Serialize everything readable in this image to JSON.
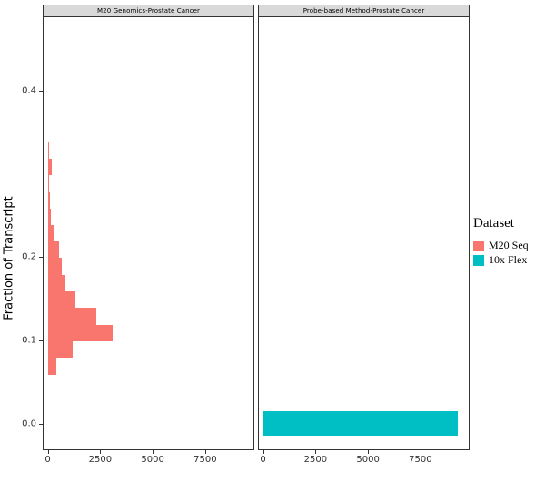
{
  "chart_data": {
    "type": "bar",
    "subtype": "horizontal-histogram-faceted",
    "title": "",
    "xlabel": "",
    "ylabel": "Fraction of Transcript",
    "x_domain": [
      -200,
      9800
    ],
    "y_domain": [
      -0.03,
      0.49
    ],
    "grid": false,
    "x_ticks": [
      {
        "v": 0,
        "label": "0"
      },
      {
        "v": 2500,
        "label": "2500"
      },
      {
        "v": 5000,
        "label": "5000"
      },
      {
        "v": 7500,
        "label": "7500"
      }
    ],
    "y_ticks": [
      {
        "v": 0.0,
        "label": "0.0"
      },
      {
        "v": 0.1,
        "label": "0.1"
      },
      {
        "v": 0.2,
        "label": "0.2"
      },
      {
        "v": 0.4,
        "label": "0.4"
      }
    ],
    "panels": [
      {
        "title": "M20 Genomics-Prostate Cancer",
        "series": "M20 Seq",
        "color": "#F8766D",
        "bins": [
          {
            "from": 0.06,
            "to": 0.08,
            "count": 400
          },
          {
            "from": 0.08,
            "to": 0.1,
            "count": 1200
          },
          {
            "from": 0.1,
            "to": 0.12,
            "count": 3100
          },
          {
            "from": 0.12,
            "to": 0.14,
            "count": 2300
          },
          {
            "from": 0.14,
            "to": 0.16,
            "count": 1300
          },
          {
            "from": 0.16,
            "to": 0.18,
            "count": 850
          },
          {
            "from": 0.18,
            "to": 0.2,
            "count": 650
          },
          {
            "from": 0.2,
            "to": 0.22,
            "count": 550
          },
          {
            "from": 0.22,
            "to": 0.24,
            "count": 280
          },
          {
            "from": 0.24,
            "to": 0.26,
            "count": 160
          },
          {
            "from": 0.26,
            "to": 0.28,
            "count": 90
          },
          {
            "from": 0.28,
            "to": 0.3,
            "count": 60
          },
          {
            "from": 0.3,
            "to": 0.32,
            "count": 200
          },
          {
            "from": 0.32,
            "to": 0.34,
            "count": 40
          }
        ]
      },
      {
        "title": "Probe-based Method-Prostate Cancer",
        "series": "10x Flex",
        "color": "#00BFC4",
        "bins": [
          {
            "from": -0.014,
            "to": 0.016,
            "count": 9300
          }
        ]
      }
    ],
    "legend": {
      "title": "Dataset",
      "position": "right",
      "entries": [
        {
          "label": "M20 Seq",
          "color": "#F8766D"
        },
        {
          "label": "10x Flex",
          "color": "#00BFC4"
        }
      ]
    }
  }
}
